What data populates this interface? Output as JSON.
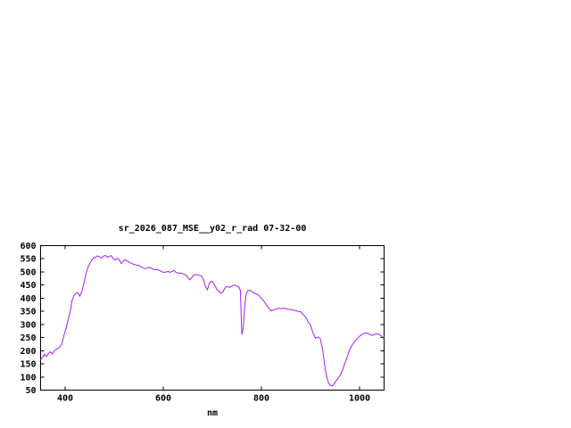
{
  "page": {
    "background": "#ffffff"
  },
  "chart_data": {
    "type": "line",
    "title": "sr_2026_087_MSE__y02_r_rad 07-32-00",
    "xlabel": "nm",
    "ylabel": "",
    "xlim": [
      350,
      1050
    ],
    "ylim": [
      50,
      600
    ],
    "xticks": [
      400,
      600,
      800,
      1000
    ],
    "yticks": [
      50,
      100,
      150,
      200,
      250,
      300,
      350,
      400,
      450,
      500,
      550,
      600
    ],
    "grid": false,
    "legend_position": "none",
    "line_color": "#a020f0",
    "frame_color": "#000000",
    "series": [
      {
        "name": "spectral_radiance",
        "points": [
          [
            350,
            165
          ],
          [
            354,
            175
          ],
          [
            358,
            186
          ],
          [
            362,
            178
          ],
          [
            366,
            190
          ],
          [
            370,
            196
          ],
          [
            374,
            188
          ],
          [
            378,
            200
          ],
          [
            382,
            205
          ],
          [
            386,
            210
          ],
          [
            390,
            216
          ],
          [
            394,
            230
          ],
          [
            398,
            262
          ],
          [
            402,
            285
          ],
          [
            406,
            318
          ],
          [
            410,
            345
          ],
          [
            414,
            390
          ],
          [
            418,
            410
          ],
          [
            422,
            418
          ],
          [
            426,
            421
          ],
          [
            430,
            408
          ],
          [
            434,
            425
          ],
          [
            438,
            455
          ],
          [
            442,
            490
          ],
          [
            446,
            515
          ],
          [
            450,
            532
          ],
          [
            454,
            545
          ],
          [
            458,
            552
          ],
          [
            462,
            556
          ],
          [
            466,
            561
          ],
          [
            470,
            558
          ],
          [
            474,
            552
          ],
          [
            478,
            560
          ],
          [
            482,
            563
          ],
          [
            486,
            556
          ],
          [
            490,
            560
          ],
          [
            494,
            562
          ],
          [
            498,
            550
          ],
          [
            502,
            545
          ],
          [
            506,
            552
          ],
          [
            510,
            548
          ],
          [
            514,
            532
          ],
          [
            518,
            540
          ],
          [
            522,
            546
          ],
          [
            526,
            542
          ],
          [
            530,
            538
          ],
          [
            534,
            534
          ],
          [
            538,
            530
          ],
          [
            542,
            528
          ],
          [
            546,
            524
          ],
          [
            550,
            526
          ],
          [
            554,
            520
          ],
          [
            558,
            516
          ],
          [
            562,
            512
          ],
          [
            566,
            514
          ],
          [
            570,
            518
          ],
          [
            574,
            516
          ],
          [
            578,
            512
          ],
          [
            582,
            508
          ],
          [
            586,
            510
          ],
          [
            590,
            507
          ],
          [
            594,
            504
          ],
          [
            598,
            500
          ],
          [
            602,
            498
          ],
          [
            606,
            500
          ],
          [
            610,
            502
          ],
          [
            614,
            498
          ],
          [
            618,
            503
          ],
          [
            622,
            505
          ],
          [
            626,
            498
          ],
          [
            630,
            495
          ],
          [
            634,
            496
          ],
          [
            638,
            494
          ],
          [
            642,
            492
          ],
          [
            646,
            488
          ],
          [
            650,
            480
          ],
          [
            654,
            470
          ],
          [
            658,
            478
          ],
          [
            662,
            488
          ],
          [
            666,
            490
          ],
          [
            670,
            489
          ],
          [
            674,
            487
          ],
          [
            678,
            485
          ],
          [
            682,
            470
          ],
          [
            686,
            445
          ],
          [
            690,
            432
          ],
          [
            694,
            458
          ],
          [
            698,
            465
          ],
          [
            702,
            458
          ],
          [
            706,
            445
          ],
          [
            710,
            432
          ],
          [
            714,
            426
          ],
          [
            718,
            418
          ],
          [
            722,
            425
          ],
          [
            726,
            440
          ],
          [
            730,
            445
          ],
          [
            734,
            441
          ],
          [
            738,
            444
          ],
          [
            742,
            448
          ],
          [
            746,
            450
          ],
          [
            750,
            446
          ],
          [
            754,
            442
          ],
          [
            757,
            430
          ],
          [
            760,
            262
          ],
          [
            763,
            285
          ],
          [
            766,
            370
          ],
          [
            769,
            415
          ],
          [
            772,
            428
          ],
          [
            776,
            431
          ],
          [
            780,
            426
          ],
          [
            785,
            420
          ],
          [
            790,
            416
          ],
          [
            795,
            410
          ],
          [
            800,
            400
          ],
          [
            805,
            388
          ],
          [
            810,
            375
          ],
          [
            815,
            362
          ],
          [
            820,
            352
          ],
          [
            825,
            355
          ],
          [
            830,
            358
          ],
          [
            835,
            362
          ],
          [
            840,
            360
          ],
          [
            845,
            362
          ],
          [
            850,
            360
          ],
          [
            855,
            358
          ],
          [
            860,
            357
          ],
          [
            865,
            355
          ],
          [
            870,
            352
          ],
          [
            875,
            350
          ],
          [
            880,
            348
          ],
          [
            885,
            338
          ],
          [
            890,
            328
          ],
          [
            895,
            310
          ],
          [
            900,
            298
          ],
          [
            905,
            268
          ],
          [
            910,
            248
          ],
          [
            915,
            252
          ],
          [
            920,
            246
          ],
          [
            925,
            200
          ],
          [
            930,
            130
          ],
          [
            935,
            85
          ],
          [
            940,
            68
          ],
          [
            945,
            66
          ],
          [
            950,
            80
          ],
          [
            955,
            92
          ],
          [
            960,
            105
          ],
          [
            965,
            125
          ],
          [
            970,
            152
          ],
          [
            975,
            178
          ],
          [
            980,
            205
          ],
          [
            985,
            222
          ],
          [
            990,
            235
          ],
          [
            995,
            246
          ],
          [
            1000,
            255
          ],
          [
            1005,
            262
          ],
          [
            1010,
            266
          ],
          [
            1015,
            268
          ],
          [
            1020,
            263
          ],
          [
            1025,
            258
          ],
          [
            1030,
            262
          ],
          [
            1035,
            265
          ],
          [
            1040,
            262
          ],
          [
            1045,
            255
          ],
          [
            1050,
            247
          ]
        ]
      }
    ]
  }
}
